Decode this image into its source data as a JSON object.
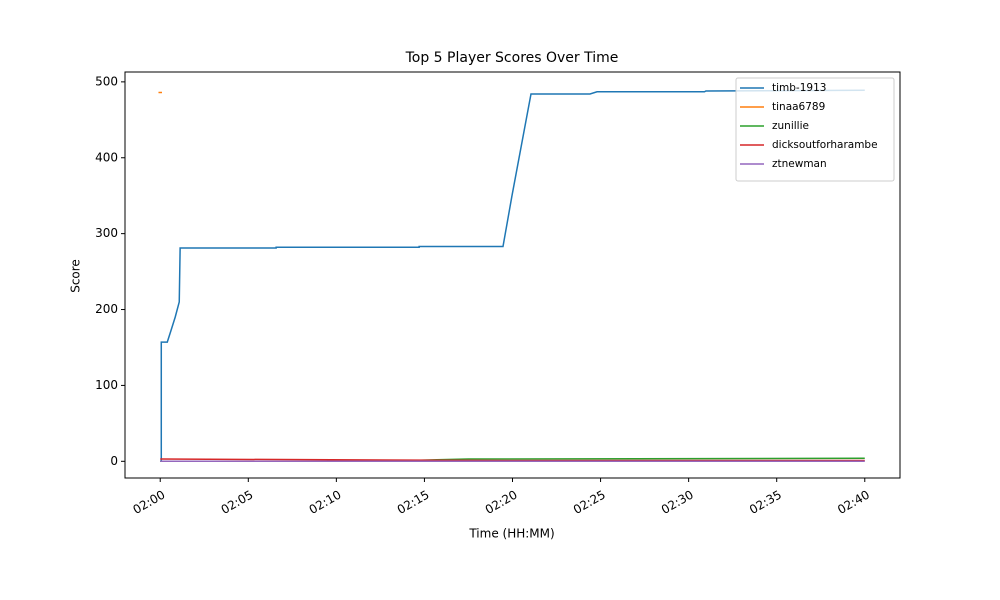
{
  "chart_data": {
    "type": "line",
    "title": "Top 5 Player Scores Over Time",
    "x_label": "Time (HH:MM)",
    "y_label": "Score",
    "xlim": [
      118,
      162
    ],
    "ylim": [
      -22,
      513
    ],
    "xticks": [
      {
        "value": 120,
        "label": "02:00"
      },
      {
        "value": 125,
        "label": "02:05"
      },
      {
        "value": 130,
        "label": "02:10"
      },
      {
        "value": 135,
        "label": "02:15"
      },
      {
        "value": 140,
        "label": "02:20"
      },
      {
        "value": 145,
        "label": "02:25"
      },
      {
        "value": 150,
        "label": "02:30"
      },
      {
        "value": 155,
        "label": "02:35"
      },
      {
        "value": 160,
        "label": "02:40"
      }
    ],
    "yticks": [
      0,
      100,
      200,
      300,
      400,
      500
    ],
    "legend": "upper right",
    "series": [
      {
        "name": "timb-1913",
        "color": "#1f77b4",
        "x": [
          120,
          120.06,
          120.06,
          120.4,
          120.62,
          120.85,
          121.08,
          121.13,
          126.58,
          126.58,
          134.7,
          134.7,
          139.46,
          139.97,
          141.05,
          144.4,
          144.8,
          150.9,
          150.98,
          160
        ],
        "values": [
          0,
          0,
          157,
          157,
          173,
          190,
          210,
          281,
          281,
          282,
          282,
          283,
          283,
          350,
          484,
          484,
          487,
          487,
          488,
          489
        ]
      },
      {
        "name": "tinaa6789",
        "color": "#ff7f0e",
        "x": [
          119.9,
          120.1
        ],
        "values": [
          486,
          486
        ]
      },
      {
        "name": "zunillie",
        "color": "#2ca02c",
        "x": [
          120,
          133,
          135.7,
          137.5,
          160
        ],
        "values": [
          0,
          0,
          2,
          3,
          4
        ]
      },
      {
        "name": "dicksoutforharambe",
        "color": "#d62728",
        "x": [
          120,
          140,
          160
        ],
        "values": [
          3,
          1,
          1
        ]
      },
      {
        "name": "ztnewman",
        "color": "#9467bd",
        "x": [
          120,
          160
        ],
        "values": [
          0,
          0
        ]
      }
    ]
  }
}
